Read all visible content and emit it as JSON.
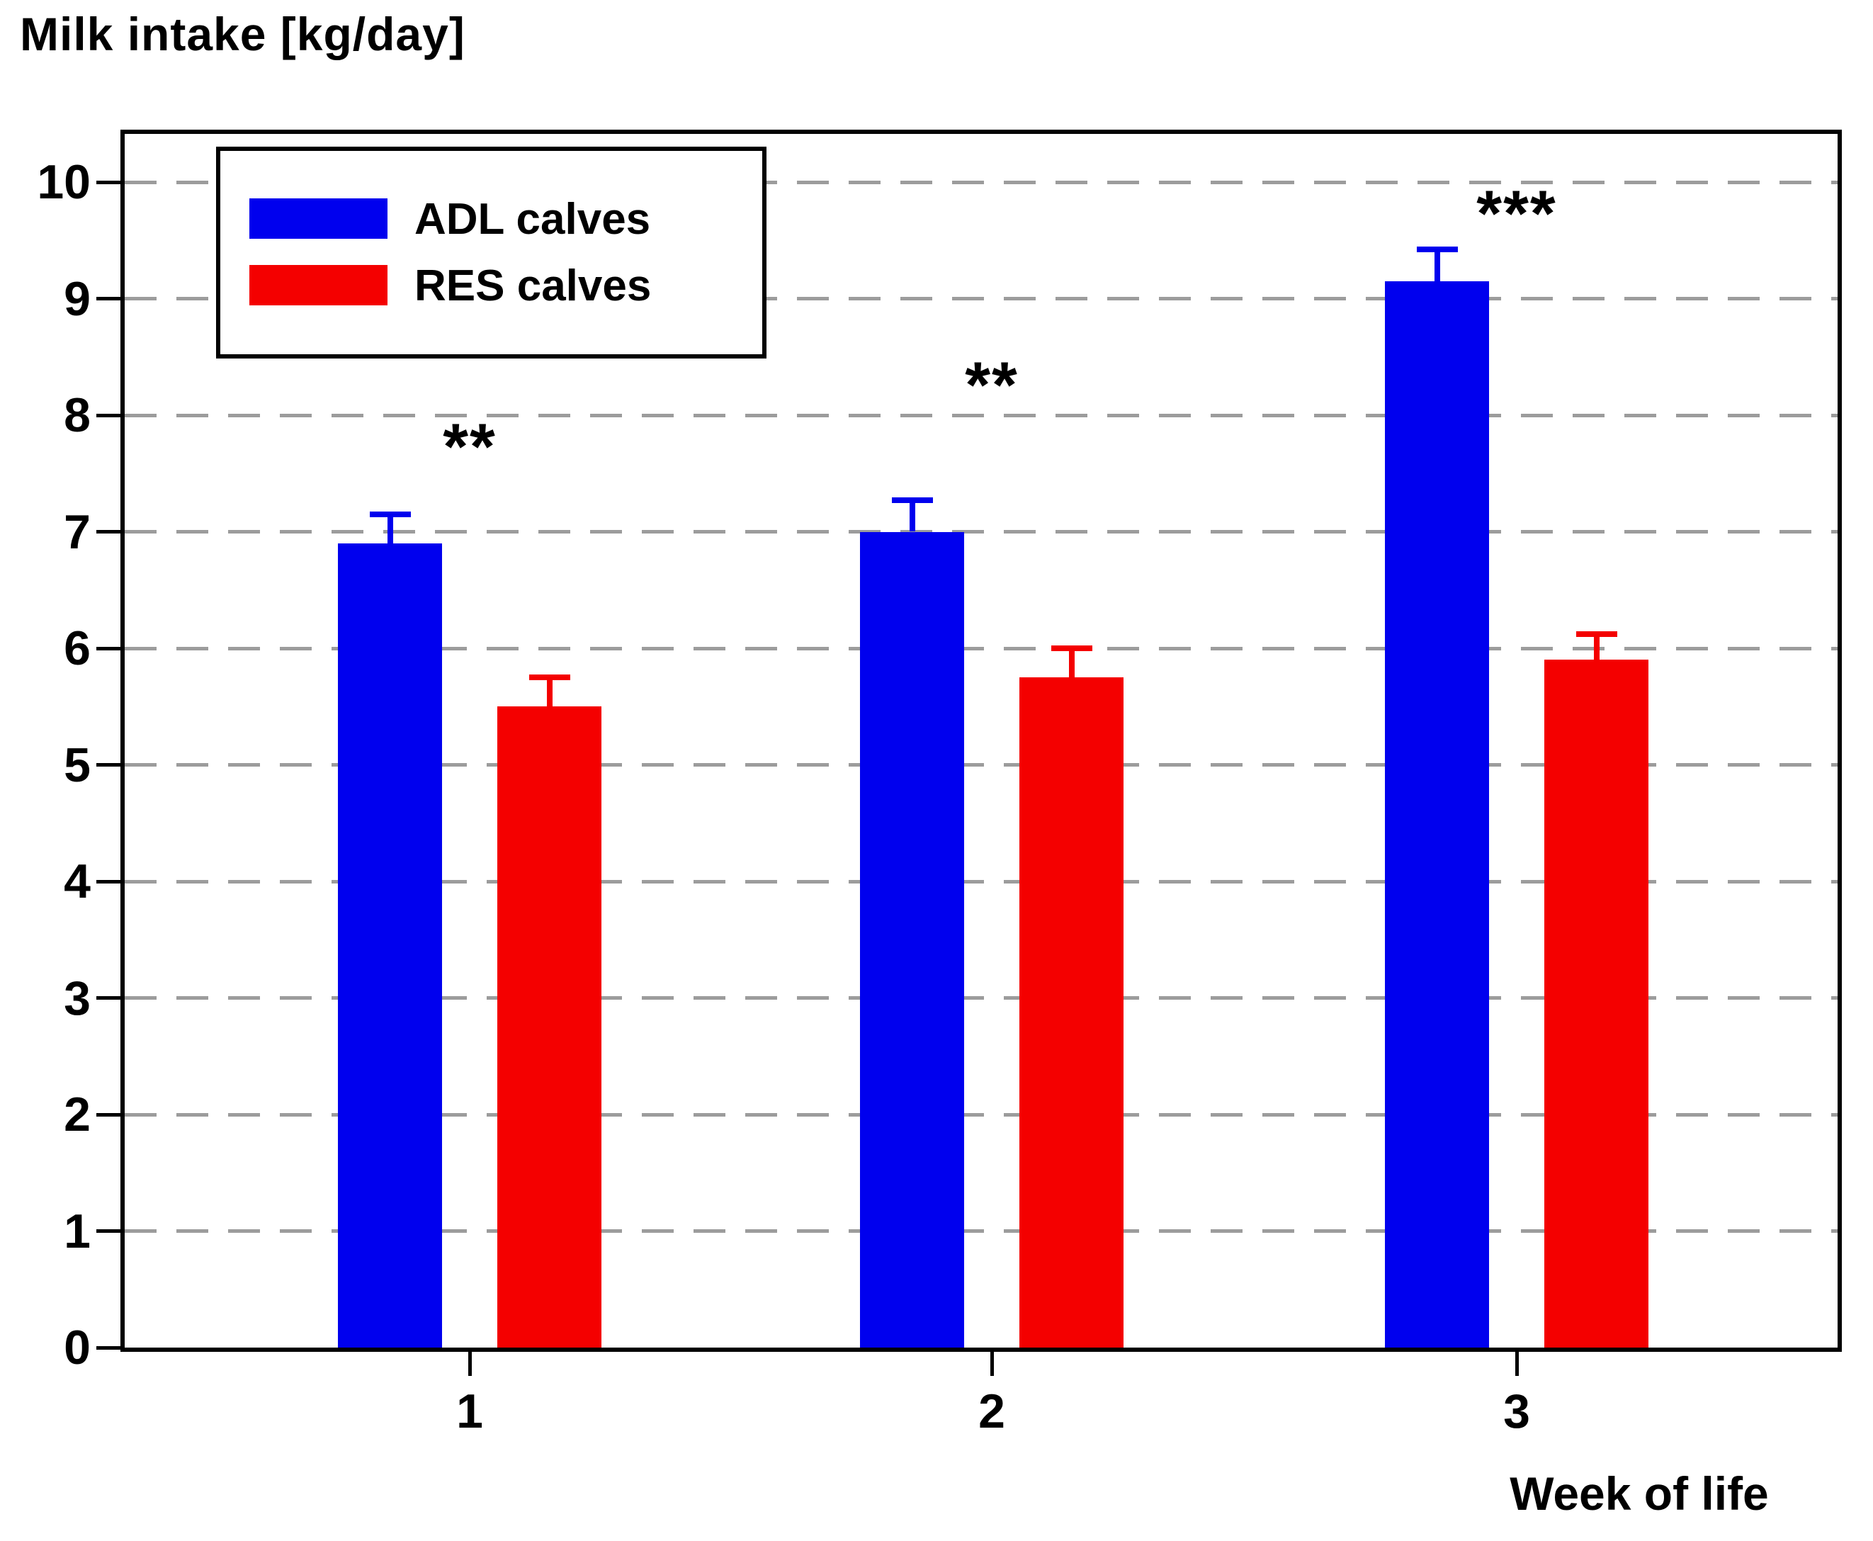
{
  "title": "Milk intake [kg/day]",
  "x_axis": {
    "label": "Week of life",
    "categories": [
      "1",
      "2",
      "3"
    ]
  },
  "y_axis": {
    "tick_labels": [
      "0",
      "1",
      "2",
      "3",
      "4",
      "5",
      "6",
      "7",
      "8",
      "9",
      "10"
    ]
  },
  "legend": {
    "items": [
      {
        "label": "ADL calves",
        "color": "#0000EE"
      },
      {
        "label": "RES calves",
        "color": "#F40000"
      }
    ]
  },
  "colors": {
    "adl_bar": "#0000EE",
    "res_bar": "#F40000",
    "gridline": "#9C9C9C",
    "axis": "#000000",
    "background": "#FFFFFF"
  },
  "chart_data": {
    "type": "bar",
    "title": "Milk intake [kg/day]",
    "xlabel": "Week of life",
    "ylabel": "Milk intake [kg/day]",
    "categories": [
      "1",
      "2",
      "3"
    ],
    "series": [
      {
        "name": "ADL calves",
        "color": "#0000EE",
        "values": [
          6.9,
          7.0,
          9.15
        ],
        "error_up": [
          0.25,
          0.27,
          0.27
        ]
      },
      {
        "name": "RES calves",
        "color": "#F40000",
        "values": [
          5.5,
          5.75,
          5.9
        ],
        "error_up": [
          0.25,
          0.25,
          0.22
        ]
      }
    ],
    "annotations": [
      {
        "category": "1",
        "text": "**",
        "y": 7.8
      },
      {
        "category": "2",
        "text": "**",
        "y": 8.33
      },
      {
        "category": "3",
        "text": "***",
        "y": 9.8
      }
    ],
    "ylim": [
      0,
      10.45
    ],
    "y_ticks": [
      0,
      1,
      2,
      3,
      4,
      5,
      6,
      7,
      8,
      9,
      10
    ],
    "grid": "horizontal dashed gray lines at each integer 1-10",
    "legend_position": "top-left inside plot",
    "error_bars": "upper only, same color as bar"
  }
}
